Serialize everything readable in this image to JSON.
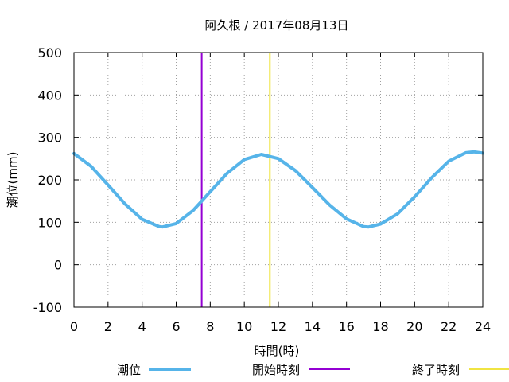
{
  "chart_data": {
    "type": "line",
    "title": "阿久根 / 2017年08月13日",
    "xlabel": "時間(時)",
    "ylabel": "潮位(mm)",
    "xlim": [
      0,
      24
    ],
    "ylim": [
      -100,
      500
    ],
    "xticks": [
      "0",
      "2",
      "4",
      "6",
      "8",
      "10",
      "12",
      "14",
      "16",
      "18",
      "20",
      "22",
      "24"
    ],
    "yticks": [
      "-100",
      "0",
      "100",
      "200",
      "300",
      "400",
      "500"
    ],
    "grid": true,
    "legend_position": "bottom",
    "series": [
      {
        "name": "潮位",
        "color": "#56b4e9",
        "x": [
          0,
          1,
          2,
          3,
          4,
          5,
          5.2,
          6,
          7,
          8,
          9,
          10,
          11,
          12,
          13,
          14,
          15,
          16,
          17,
          17.3,
          18,
          19,
          20,
          21,
          22,
          23,
          23.5,
          24
        ],
        "y": [
          262,
          232,
          188,
          143,
          107,
          90,
          89,
          97,
          128,
          172,
          216,
          248,
          260,
          250,
          222,
          182,
          141,
          108,
          90,
          89,
          96,
          120,
          160,
          205,
          244,
          264,
          266,
          263
        ]
      }
    ],
    "vlines": [
      {
        "name": "開始時刻",
        "x": 7.5,
        "color": "#9400d3"
      },
      {
        "name": "終了時刻",
        "x": 11.5,
        "color": "#f0e442"
      }
    ]
  }
}
